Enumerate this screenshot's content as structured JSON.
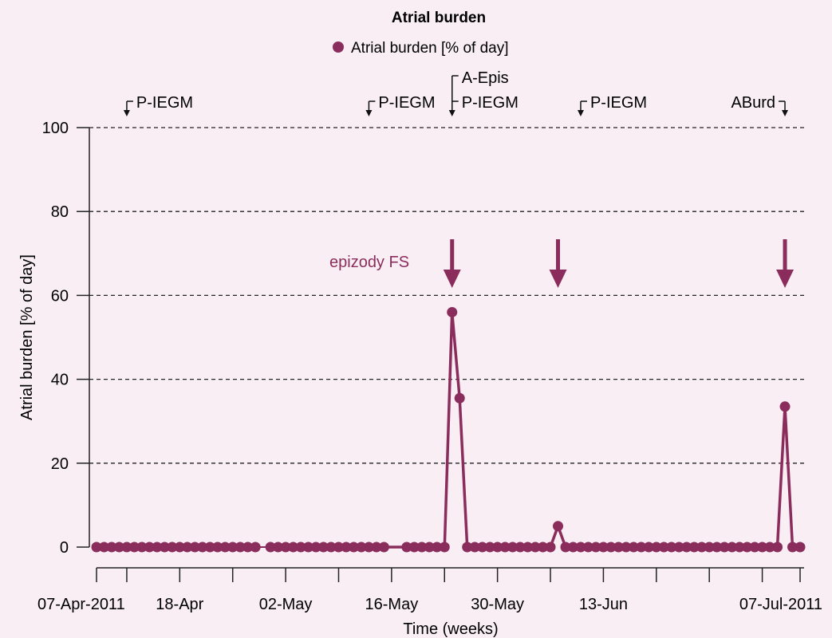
{
  "chart_data": {
    "type": "line",
    "title": "Atrial burden",
    "xlabel": "Time (weeks)",
    "ylabel": "Atrial burden [% of day]",
    "x_start_date": "2011-04-07",
    "x_end_date": "2011-07-09",
    "ylim": [
      0,
      100
    ],
    "yticks": [
      0,
      20,
      40,
      60,
      80,
      100
    ],
    "grid": "horizontal dashed",
    "legend_position": "top",
    "series_color": "#8b2d5c",
    "series": [
      {
        "name": "Atrial burden [% of day]",
        "segments": [
          [
            {
              "x": "2011-04-07",
              "y": 0
            },
            {
              "x": "2011-04-08",
              "y": 0
            },
            {
              "x": "2011-04-09",
              "y": 0
            },
            {
              "x": "2011-04-10",
              "y": 0
            },
            {
              "x": "2011-04-11",
              "y": 0
            },
            {
              "x": "2011-04-12",
              "y": 0
            },
            {
              "x": "2011-04-13",
              "y": 0
            },
            {
              "x": "2011-04-14",
              "y": 0
            },
            {
              "x": "2011-04-15",
              "y": 0
            },
            {
              "x": "2011-04-16",
              "y": 0
            },
            {
              "x": "2011-04-17",
              "y": 0
            },
            {
              "x": "2011-04-18",
              "y": 0
            },
            {
              "x": "2011-04-19",
              "y": 0
            },
            {
              "x": "2011-04-20",
              "y": 0
            },
            {
              "x": "2011-04-21",
              "y": 0
            },
            {
              "x": "2011-04-22",
              "y": 0
            },
            {
              "x": "2011-04-23",
              "y": 0
            },
            {
              "x": "2011-04-24",
              "y": 0
            },
            {
              "x": "2011-04-25",
              "y": 0
            },
            {
              "x": "2011-04-26",
              "y": 0
            },
            {
              "x": "2011-04-27",
              "y": 0
            },
            {
              "x": "2011-04-28",
              "y": 0
            }
          ],
          [
            {
              "x": "2011-04-30",
              "y": 0
            },
            {
              "x": "2011-05-01",
              "y": 0
            },
            {
              "x": "2011-05-02",
              "y": 0
            },
            {
              "x": "2011-05-03",
              "y": 0
            },
            {
              "x": "2011-05-04",
              "y": 0
            },
            {
              "x": "2011-05-05",
              "y": 0
            },
            {
              "x": "2011-05-06",
              "y": 0
            },
            {
              "x": "2011-05-07",
              "y": 0
            },
            {
              "x": "2011-05-08",
              "y": 0
            },
            {
              "x": "2011-05-09",
              "y": 0
            },
            {
              "x": "2011-05-10",
              "y": 0
            },
            {
              "x": "2011-05-11",
              "y": 0
            },
            {
              "x": "2011-05-12",
              "y": 0
            },
            {
              "x": "2011-05-13",
              "y": 0
            },
            {
              "x": "2011-05-14",
              "y": 0
            },
            {
              "x": "2011-05-15",
              "y": 0
            },
            {
              "x": "2011-05-18",
              "y": 0
            },
            {
              "x": "2011-05-19",
              "y": 0
            },
            {
              "x": "2011-05-20",
              "y": 0
            },
            {
              "x": "2011-05-21",
              "y": 0
            },
            {
              "x": "2011-05-22",
              "y": 0
            },
            {
              "x": "2011-05-23",
              "y": 0
            },
            {
              "x": "2011-05-24",
              "y": 56
            },
            {
              "x": "2011-05-25",
              "y": 35.5
            },
            {
              "x": "2011-05-26",
              "y": 0
            },
            {
              "x": "2011-05-27",
              "y": 0
            },
            {
              "x": "2011-05-28",
              "y": 0
            },
            {
              "x": "2011-05-29",
              "y": 0
            },
            {
              "x": "2011-05-30",
              "y": 0
            },
            {
              "x": "2011-05-31",
              "y": 0
            },
            {
              "x": "2011-06-01",
              "y": 0
            },
            {
              "x": "2011-06-02",
              "y": 0
            },
            {
              "x": "2011-06-03",
              "y": 0
            },
            {
              "x": "2011-06-04",
              "y": 0
            },
            {
              "x": "2011-06-05",
              "y": 0
            },
            {
              "x": "2011-06-06",
              "y": 0
            },
            {
              "x": "2011-06-07",
              "y": 5
            },
            {
              "x": "2011-06-08",
              "y": 0
            },
            {
              "x": "2011-06-09",
              "y": 0
            },
            {
              "x": "2011-06-10",
              "y": 0
            },
            {
              "x": "2011-06-11",
              "y": 0
            },
            {
              "x": "2011-06-12",
              "y": 0
            },
            {
              "x": "2011-06-13",
              "y": 0
            },
            {
              "x": "2011-06-14",
              "y": 0
            },
            {
              "x": "2011-06-15",
              "y": 0
            },
            {
              "x": "2011-06-16",
              "y": 0
            },
            {
              "x": "2011-06-17",
              "y": 0
            },
            {
              "x": "2011-06-18",
              "y": 0
            },
            {
              "x": "2011-06-19",
              "y": 0
            },
            {
              "x": "2011-06-20",
              "y": 0
            },
            {
              "x": "2011-06-21",
              "y": 0
            },
            {
              "x": "2011-06-22",
              "y": 0
            },
            {
              "x": "2011-06-23",
              "y": 0
            },
            {
              "x": "2011-06-24",
              "y": 0
            },
            {
              "x": "2011-06-25",
              "y": 0
            },
            {
              "x": "2011-06-26",
              "y": 0
            },
            {
              "x": "2011-06-27",
              "y": 0
            },
            {
              "x": "2011-06-28",
              "y": 0
            },
            {
              "x": "2011-06-29",
              "y": 0
            },
            {
              "x": "2011-06-30",
              "y": 0
            },
            {
              "x": "2011-07-01",
              "y": 0
            },
            {
              "x": "2011-07-02",
              "y": 0
            },
            {
              "x": "2011-07-03",
              "y": 0
            },
            {
              "x": "2011-07-04",
              "y": 0
            },
            {
              "x": "2011-07-05",
              "y": 0
            },
            {
              "x": "2011-07-06",
              "y": 0
            },
            {
              "x": "2011-07-07",
              "y": 33.5
            },
            {
              "x": "2011-07-08",
              "y": 0
            },
            {
              "x": "2011-07-09",
              "y": 0
            }
          ]
        ]
      }
    ],
    "x_tick_labels": [
      {
        "x": "2011-04-07",
        "label": "07-Apr-2011"
      },
      {
        "x": "2011-04-18",
        "label": "18-Apr"
      },
      {
        "x": "2011-05-02",
        "label": "02-May"
      },
      {
        "x": "2011-05-16",
        "label": "16-May"
      },
      {
        "x": "2011-05-30",
        "label": "30-May"
      },
      {
        "x": "2011-06-13",
        "label": "13-Jun"
      },
      {
        "x": "2011-07-07",
        "label": "07-Jul-2011"
      }
    ],
    "x_minor_ticks": [
      "2011-04-07",
      "2011-04-11",
      "2011-04-18",
      "2011-04-25",
      "2011-05-02",
      "2011-05-09",
      "2011-05-16",
      "2011-05-23",
      "2011-05-30",
      "2011-06-06",
      "2011-06-13",
      "2011-06-20",
      "2011-06-27",
      "2011-07-04",
      "2011-07-09"
    ],
    "event_markers": [
      {
        "x": "2011-04-11",
        "labels": [
          "P-IEGM"
        ],
        "label_side": "right"
      },
      {
        "x": "2011-05-13",
        "labels": [
          "P-IEGM"
        ],
        "label_side": "right"
      },
      {
        "x": "2011-05-24",
        "labels": [
          "A-Epis",
          "P-IEGM"
        ],
        "label_side": "right"
      },
      {
        "x": "2011-06-10",
        "labels": [
          "P-IEGM"
        ],
        "label_side": "right"
      },
      {
        "x": "2011-07-07",
        "labels": [
          "ABurd"
        ],
        "label_side": "left"
      }
    ],
    "annotation": {
      "text": "epizody FS",
      "arrows_at": [
        "2011-05-24",
        "2011-06-07",
        "2011-07-07"
      ]
    }
  }
}
